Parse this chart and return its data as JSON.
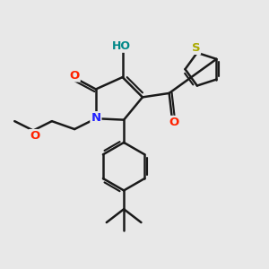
{
  "background_color": "#e8e8e8",
  "bond_color": "#1a1a1a",
  "bond_width": 1.8,
  "atom_colors": {
    "O": "#ff2200",
    "N": "#2222ff",
    "S": "#aaaa00",
    "HO_text": "#008888"
  },
  "fig_width": 3.0,
  "fig_height": 3.0,
  "dpi": 100
}
